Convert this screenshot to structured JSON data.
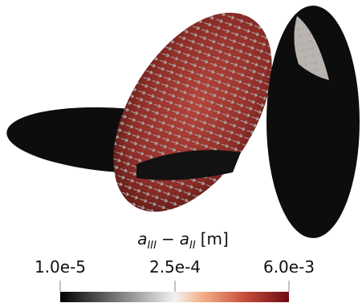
{
  "colorbar": {
    "label": {
      "symbol_1": "a",
      "subscript_1": "III",
      "operator": "−",
      "symbol_2": "a",
      "subscript_2": "II",
      "unit": "[m]"
    },
    "ticks": [
      "1.0e-5",
      "2.5e-4",
      "6.0e-3"
    ]
  }
}
